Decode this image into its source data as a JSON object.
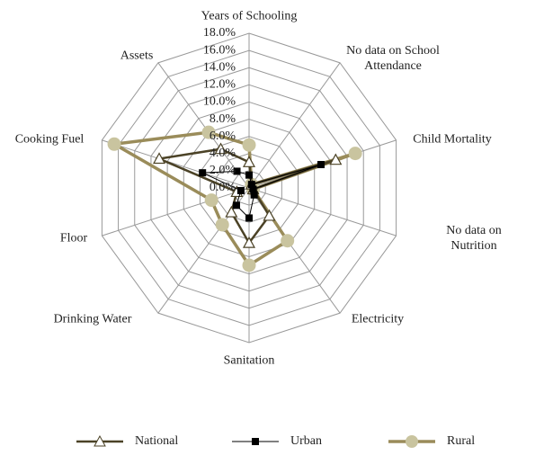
{
  "chart_data": {
    "type": "radar",
    "categories": [
      "Years of Schooling",
      "No data on School Attendance",
      "Child Mortality",
      "No data on Nutrition",
      "Electricity",
      "Sanitation",
      "Drinking Water",
      "Floor",
      "Cooking Fuel",
      "Assets"
    ],
    "series": [
      {
        "name": "National",
        "color": "#4b4226",
        "marker": "triangle",
        "values": [
          3.0,
          0.5,
          10.6,
          0.5,
          4.0,
          6.4,
          3.5,
          1.5,
          11.0,
          5.6
        ]
      },
      {
        "name": "Urban",
        "color": "#000000",
        "marker": "square",
        "values": [
          1.5,
          0.5,
          8.8,
          0.5,
          1.0,
          3.5,
          2.5,
          1.0,
          5.7,
          2.4
        ]
      },
      {
        "name": "Rural",
        "color": "#9a8c5a",
        "marker": "circle",
        "values": [
          5.0,
          0.5,
          13.0,
          0.5,
          7.6,
          9.0,
          5.3,
          4.6,
          16.5,
          8.0
        ]
      }
    ],
    "ylim": [
      0,
      18
    ],
    "yticks": [
      {
        "value": 0,
        "label": "0.0%"
      },
      {
        "value": 2,
        "label": "2.0%"
      },
      {
        "value": 4,
        "label": "4.0%"
      },
      {
        "value": 6,
        "label": "6.0%"
      },
      {
        "value": 8,
        "label": "8.0%"
      },
      {
        "value": 10,
        "label": "10.0%"
      },
      {
        "value": 12,
        "label": "12.0%"
      },
      {
        "value": 14,
        "label": "14.0%"
      },
      {
        "value": 16,
        "label": "16.0%"
      },
      {
        "value": 18,
        "label": "18.0%"
      }
    ],
    "grid": true,
    "legend": "bottom"
  }
}
